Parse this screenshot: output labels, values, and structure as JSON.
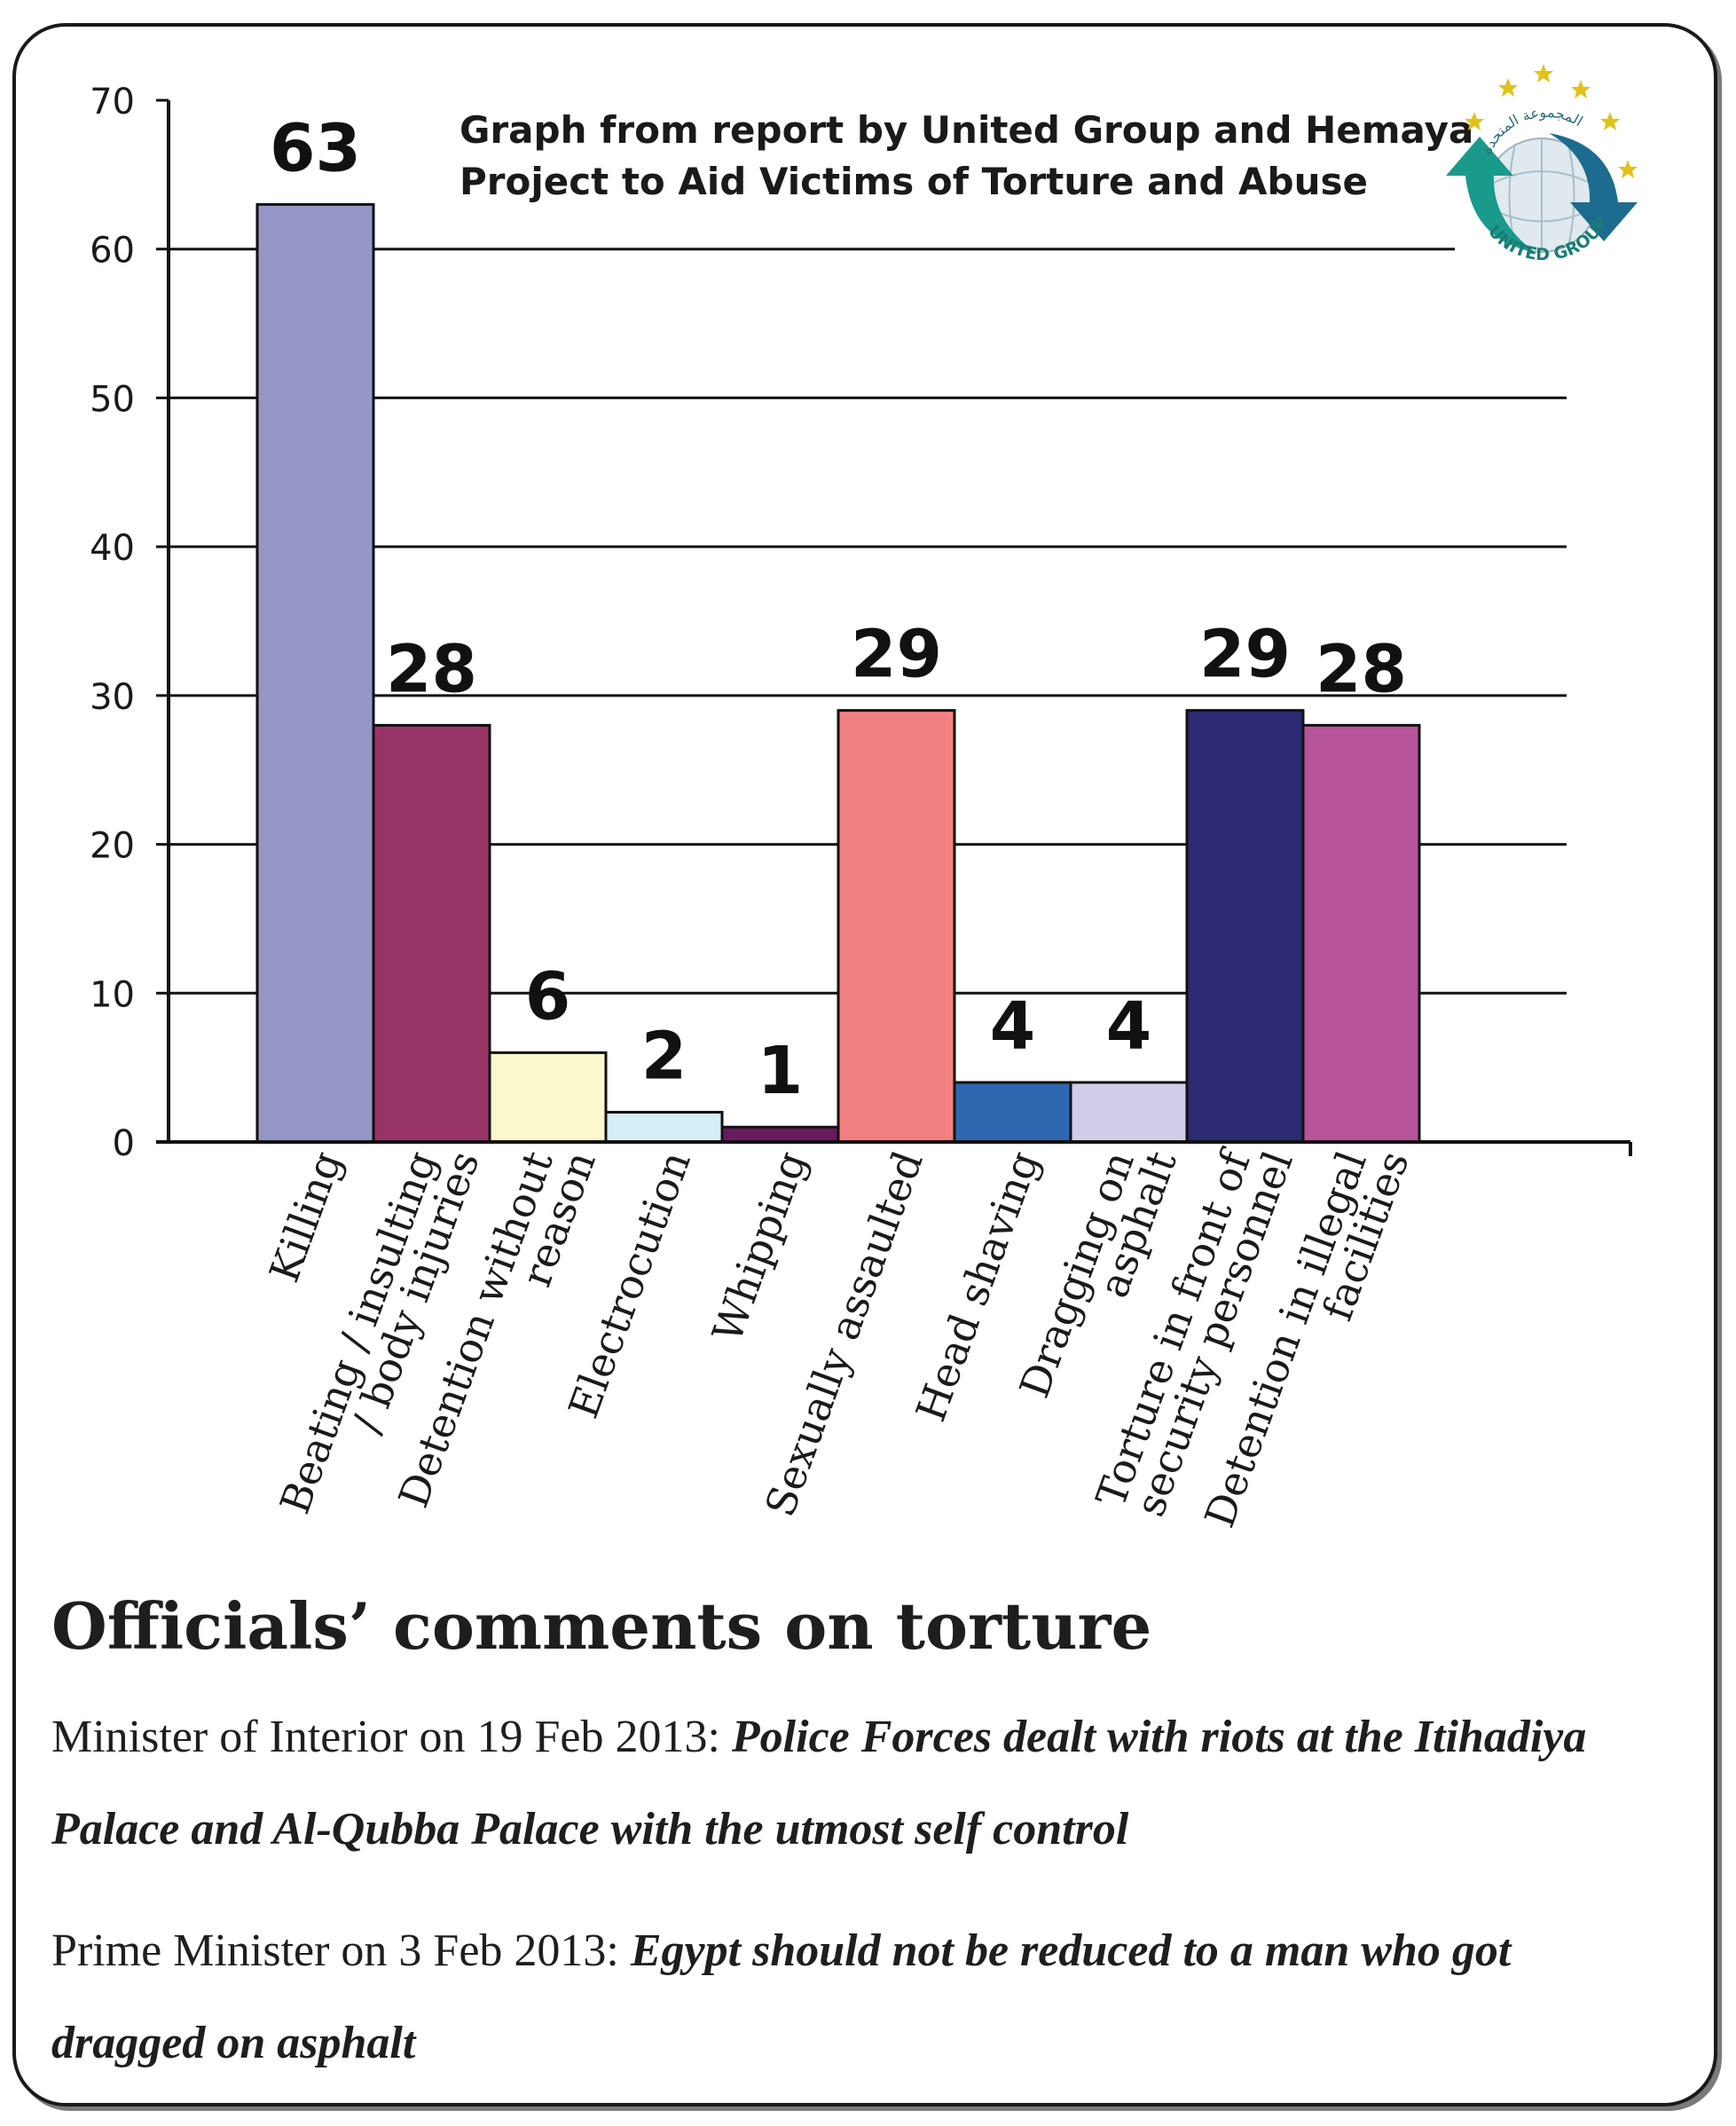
{
  "chart_data": {
    "type": "bar",
    "title": "Graph from report by United Group and Hemaya Project to Aid Victims of Torture and Abuse",
    "title_lines": [
      "Graph from report by United Group and Hemaya",
      "Project to Aid Victims of Torture and Abuse"
    ],
    "categories": [
      "Killing",
      "Beating / insulting / body injuries",
      "Detention without reason",
      "Electrocution",
      "Whipping",
      "Sexually assaulted",
      "Head shaving",
      "Dragging on asphalt",
      "Torture in front of security personnel",
      "Detention in illegal facilities"
    ],
    "category_lines": [
      [
        "Killing"
      ],
      [
        "Beating / insulting",
        "/ body injuries"
      ],
      [
        "Detention without",
        "reason"
      ],
      [
        "Electrocution"
      ],
      [
        "Whipping"
      ],
      [
        "Sexually assaulted"
      ],
      [
        "Head shaving"
      ],
      [
        "Dragging on",
        "asphalt"
      ],
      [
        "Torture in front of",
        "security personnel"
      ],
      [
        "Detention in illegal",
        "facilities"
      ]
    ],
    "values": [
      63,
      28,
      6,
      2,
      1,
      29,
      4,
      4,
      29,
      28
    ],
    "colors": [
      "#9597c8",
      "#983465",
      "#fcf8cd",
      "#d6eef8",
      "#6a1b5e",
      "#f28080",
      "#2f67b1",
      "#d1cce8",
      "#2b2a72",
      "#b85499"
    ],
    "ylim": [
      0,
      70
    ],
    "yticks": [
      0,
      10,
      20,
      30,
      40,
      50,
      60,
      70
    ],
    "grid": true,
    "xlabel": "",
    "ylabel": ""
  },
  "logo": {
    "arabic_text": "المجموعة المتحدة",
    "english_text": "UNITED GROUP"
  },
  "heading": "Officials’ comments on torture",
  "comments": [
    {
      "speaker": "Minister of Interior on 19 Feb 2013: ",
      "quote": "Police Forces dealt with riots at the Itihadiya Palace and Al-Qubba Palace with the utmost self control"
    },
    {
      "speaker": "Prime Minister on 3 Feb 2013: ",
      "quote": "Egypt should not be reduced to a man who got dragged on asphalt"
    }
  ]
}
